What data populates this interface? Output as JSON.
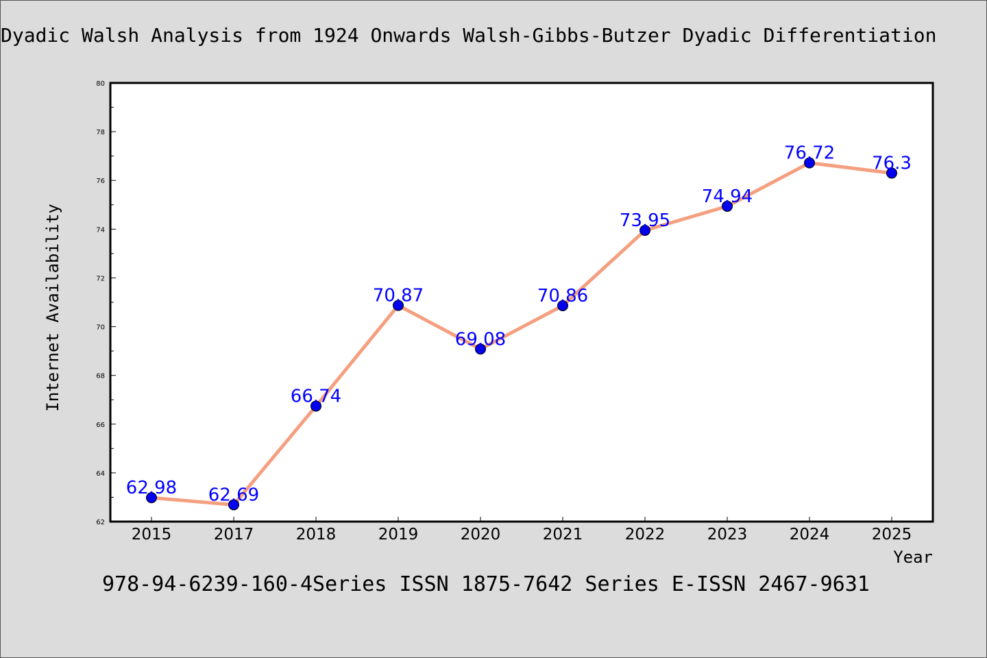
{
  "chart_data": {
    "type": "line",
    "title": "Dyadic Walsh Analysis from 1924 Onwards Walsh-Gibbs-Butzer Dyadic Differentiation",
    "xlabel": "Year",
    "ylabel": "Internet Availability",
    "categories": [
      "2015",
      "2017",
      "2018",
      "2019",
      "2020",
      "2021",
      "2022",
      "2023",
      "2024",
      "2025"
    ],
    "series": [
      {
        "values": [
          62.98,
          62.69,
          66.74,
          70.87,
          69.08,
          70.86,
          73.95,
          74.94,
          76.72,
          76.3
        ],
        "data_labels": [
          "62.98",
          "62.69",
          "66.74",
          "70.87",
          "69.08",
          "70.86",
          "73.95",
          "74.94",
          "76.72",
          "76.3"
        ],
        "line_color": "#f4a080",
        "marker_color": "#0000ee"
      }
    ],
    "ylim": [
      62,
      80
    ],
    "yticks": [
      "62",
      "64",
      "66",
      "68",
      "70",
      "72",
      "74",
      "76",
      "78",
      "80"
    ],
    "label_color": "#0000ff",
    "grid": false,
    "legend": "none"
  },
  "caption": "978-94-6239-160-4Series ISSN 1875-7642 Series E-ISSN 2467-9631"
}
